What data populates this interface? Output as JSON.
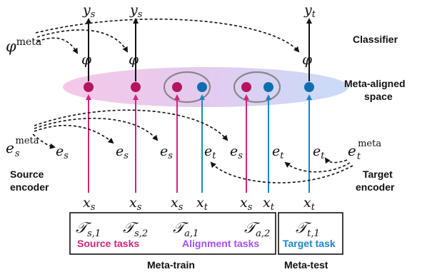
{
  "labels": {
    "classifier": "Classifier",
    "space_line1": "Meta-aligned",
    "space_line2": "space",
    "source_encoder_line1": "Source",
    "source_encoder_line2": "encoder",
    "target_encoder_line1": "Target",
    "target_encoder_line2": "encoder",
    "meta_train": "Meta-train",
    "meta_test": "Meta-test"
  },
  "task_groups": {
    "source": "Source tasks",
    "alignment": "Alignment tasks",
    "target": "Target task"
  },
  "math": {
    "phi_meta_base": "φ",
    "phi_meta_sup": "meta",
    "phi": "φ",
    "y": "y",
    "sub_s": "s",
    "sub_t": "t",
    "e": "e",
    "x": "x",
    "e_meta_sup": "meta",
    "task_T": "𝒯",
    "task_s1": "s,1",
    "task_s2": "s,2",
    "task_a1": "a,1",
    "task_a2": "a,2",
    "task_t1": "t,1"
  },
  "colors": {
    "source": "#d4237a",
    "target": "#1a86c6",
    "alignment": "#a64dff",
    "space_fill_left": "#f3c6e6",
    "space_fill_right": "#c9dcf7"
  }
}
